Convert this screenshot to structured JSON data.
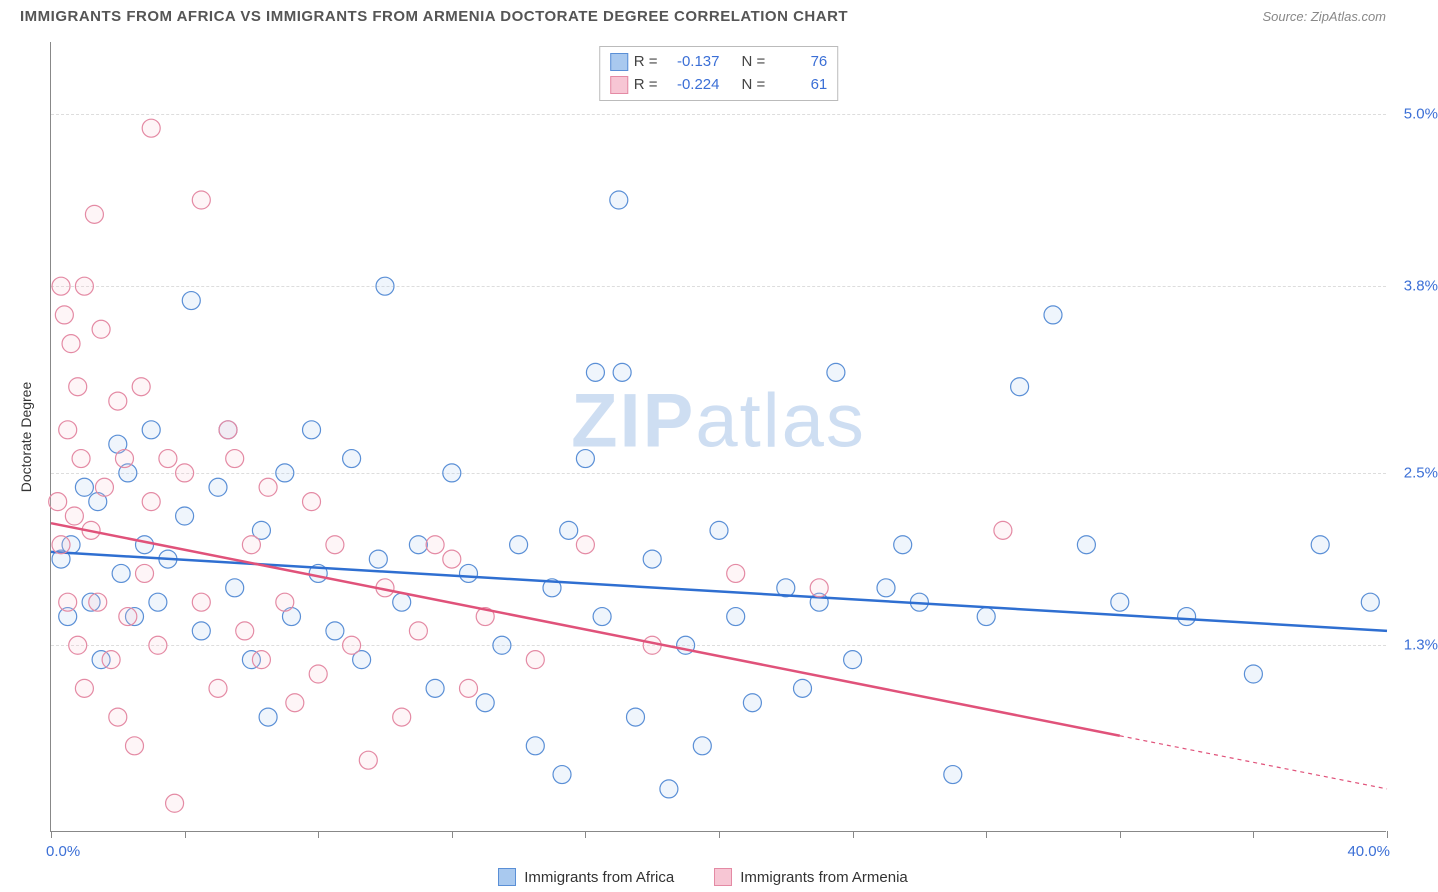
{
  "title": "IMMIGRANTS FROM AFRICA VS IMMIGRANTS FROM ARMENIA DOCTORATE DEGREE CORRELATION CHART",
  "source": "Source: ZipAtlas.com",
  "y_axis_label": "Doctorate Degree",
  "watermark_bold": "ZIP",
  "watermark_light": "atlas",
  "x_min_label": "0.0%",
  "x_max_label": "40.0%",
  "chart": {
    "type": "scatter",
    "xlim": [
      0,
      40
    ],
    "ylim": [
      0,
      5.5
    ],
    "y_ticks": [
      {
        "v": 1.3,
        "label": "1.3%"
      },
      {
        "v": 2.5,
        "label": "2.5%"
      },
      {
        "v": 3.8,
        "label": "3.8%"
      },
      {
        "v": 5.0,
        "label": "5.0%"
      }
    ],
    "x_tick_step": 4,
    "grid_color": "#dddddd",
    "axis_color": "#888888",
    "tick_label_color": "#3b6fd6",
    "background_color": "#ffffff",
    "marker_radius": 9,
    "marker_stroke_width": 1.2,
    "marker_fill_opacity": 0.18,
    "line_width": 2.5,
    "series": [
      {
        "name": "Immigrants from Africa",
        "color_stroke": "#5a8fd6",
        "color_fill": "#a9c9ef",
        "line_color": "#2f6fd1",
        "R": "-0.137",
        "N": "76",
        "trend": {
          "x1": 0,
          "y1": 1.95,
          "x2": 40,
          "y2": 1.4,
          "solid_until_x": 40
        },
        "points": [
          [
            0.3,
            1.9
          ],
          [
            0.5,
            1.5
          ],
          [
            0.6,
            2.0
          ],
          [
            1.0,
            2.4
          ],
          [
            1.2,
            1.6
          ],
          [
            1.4,
            2.3
          ],
          [
            1.5,
            1.2
          ],
          [
            2.0,
            2.7
          ],
          [
            2.1,
            1.8
          ],
          [
            2.3,
            2.5
          ],
          [
            2.5,
            1.5
          ],
          [
            2.8,
            2.0
          ],
          [
            3.0,
            2.8
          ],
          [
            3.2,
            1.6
          ],
          [
            3.5,
            1.9
          ],
          [
            4.0,
            2.2
          ],
          [
            4.2,
            3.7
          ],
          [
            4.5,
            1.4
          ],
          [
            5.0,
            2.4
          ],
          [
            5.3,
            2.8
          ],
          [
            5.5,
            1.7
          ],
          [
            6.0,
            1.2
          ],
          [
            6.3,
            2.1
          ],
          [
            6.5,
            0.8
          ],
          [
            7.0,
            2.5
          ],
          [
            7.2,
            1.5
          ],
          [
            7.8,
            2.8
          ],
          [
            8.0,
            1.8
          ],
          [
            8.5,
            1.4
          ],
          [
            9.0,
            2.6
          ],
          [
            9.3,
            1.2
          ],
          [
            9.8,
            1.9
          ],
          [
            10.0,
            3.8
          ],
          [
            10.5,
            1.6
          ],
          [
            11.0,
            2.0
          ],
          [
            11.5,
            1.0
          ],
          [
            12.0,
            2.5
          ],
          [
            12.5,
            1.8
          ],
          [
            13.0,
            0.9
          ],
          [
            13.5,
            1.3
          ],
          [
            14.0,
            2.0
          ],
          [
            14.5,
            0.6
          ],
          [
            15.0,
            1.7
          ],
          [
            15.3,
            0.4
          ],
          [
            15.5,
            2.1
          ],
          [
            16.0,
            2.6
          ],
          [
            16.3,
            3.2
          ],
          [
            16.5,
            1.5
          ],
          [
            17.0,
            4.4
          ],
          [
            17.1,
            3.2
          ],
          [
            17.5,
            0.8
          ],
          [
            18.0,
            1.9
          ],
          [
            18.5,
            0.3
          ],
          [
            19.0,
            1.3
          ],
          [
            19.5,
            0.6
          ],
          [
            20.0,
            2.1
          ],
          [
            20.5,
            1.5
          ],
          [
            21.0,
            0.9
          ],
          [
            22.0,
            1.7
          ],
          [
            22.5,
            1.0
          ],
          [
            23.0,
            1.6
          ],
          [
            23.5,
            3.2
          ],
          [
            24.0,
            1.2
          ],
          [
            25.0,
            1.7
          ],
          [
            25.5,
            2.0
          ],
          [
            26.0,
            1.6
          ],
          [
            27.0,
            0.4
          ],
          [
            28.0,
            1.5
          ],
          [
            29.0,
            3.1
          ],
          [
            30.0,
            3.6
          ],
          [
            31.0,
            2.0
          ],
          [
            32.0,
            1.6
          ],
          [
            34.0,
            1.5
          ],
          [
            36.0,
            1.1
          ],
          [
            38.0,
            2.0
          ],
          [
            39.5,
            1.6
          ]
        ]
      },
      {
        "name": "Immigrants from Armenia",
        "color_stroke": "#e48aa4",
        "color_fill": "#f7c6d4",
        "line_color": "#e0527a",
        "R": "-0.224",
        "N": "61",
        "trend": {
          "x1": 0,
          "y1": 2.15,
          "x2": 40,
          "y2": 0.3,
          "solid_until_x": 32
        },
        "points": [
          [
            0.2,
            2.3
          ],
          [
            0.3,
            3.8
          ],
          [
            0.3,
            2.0
          ],
          [
            0.4,
            3.6
          ],
          [
            0.5,
            2.8
          ],
          [
            0.5,
            1.6
          ],
          [
            0.6,
            3.4
          ],
          [
            0.7,
            2.2
          ],
          [
            0.8,
            3.1
          ],
          [
            0.8,
            1.3
          ],
          [
            0.9,
            2.6
          ],
          [
            1.0,
            3.8
          ],
          [
            1.0,
            1.0
          ],
          [
            1.2,
            2.1
          ],
          [
            1.3,
            4.3
          ],
          [
            1.4,
            1.6
          ],
          [
            1.5,
            3.5
          ],
          [
            1.6,
            2.4
          ],
          [
            1.8,
            1.2
          ],
          [
            2.0,
            3.0
          ],
          [
            2.0,
            0.8
          ],
          [
            2.2,
            2.6
          ],
          [
            2.3,
            1.5
          ],
          [
            2.5,
            0.6
          ],
          [
            2.7,
            3.1
          ],
          [
            2.8,
            1.8
          ],
          [
            3.0,
            4.9
          ],
          [
            3.0,
            2.3
          ],
          [
            3.2,
            1.3
          ],
          [
            3.5,
            2.6
          ],
          [
            3.7,
            0.2
          ],
          [
            4.0,
            2.5
          ],
          [
            4.5,
            4.4
          ],
          [
            4.5,
            1.6
          ],
          [
            5.0,
            1.0
          ],
          [
            5.3,
            2.8
          ],
          [
            5.5,
            2.6
          ],
          [
            5.8,
            1.4
          ],
          [
            6.0,
            2.0
          ],
          [
            6.3,
            1.2
          ],
          [
            6.5,
            2.4
          ],
          [
            7.0,
            1.6
          ],
          [
            7.3,
            0.9
          ],
          [
            7.8,
            2.3
          ],
          [
            8.0,
            1.1
          ],
          [
            8.5,
            2.0
          ],
          [
            9.0,
            1.3
          ],
          [
            9.5,
            0.5
          ],
          [
            10.0,
            1.7
          ],
          [
            10.5,
            0.8
          ],
          [
            11.0,
            1.4
          ],
          [
            11.5,
            2.0
          ],
          [
            12.0,
            1.9
          ],
          [
            12.5,
            1.0
          ],
          [
            13.0,
            1.5
          ],
          [
            14.5,
            1.2
          ],
          [
            16.0,
            2.0
          ],
          [
            18.0,
            1.3
          ],
          [
            20.5,
            1.8
          ],
          [
            23.0,
            1.7
          ],
          [
            28.5,
            2.1
          ]
        ]
      }
    ]
  },
  "stats_labels": {
    "R": "R  =",
    "N": "N  ="
  }
}
